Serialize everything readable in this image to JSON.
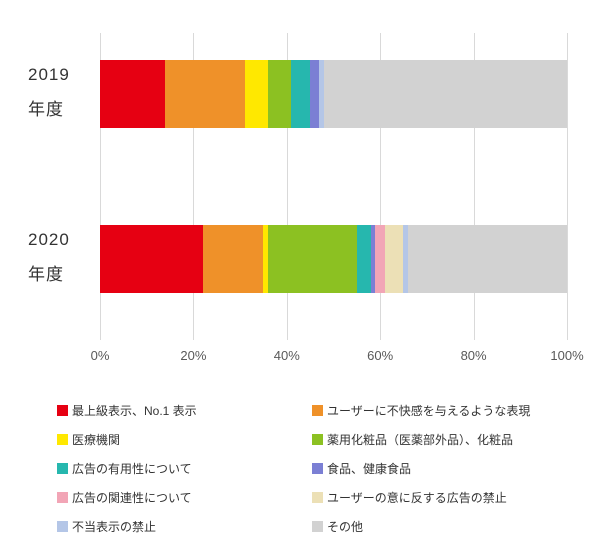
{
  "chart_data": {
    "type": "bar",
    "orientation": "horizontal",
    "stacked": true,
    "grid": true,
    "legend_position": "bottom",
    "categories": [
      "2019 年度",
      "2020 年度"
    ],
    "category_lines": [
      [
        "2019",
        "年度"
      ],
      [
        "2020",
        "年度"
      ]
    ],
    "x_ticks": [
      "0%",
      "20%",
      "40%",
      "60%",
      "80%",
      "100%"
    ],
    "xlim": [
      0,
      100
    ],
    "series": [
      {
        "name": "最上級表示、No.1 表示",
        "color": "#e60012",
        "values": [
          14,
          22
        ]
      },
      {
        "name": "ユーザーに不快感を与えるような表現",
        "color": "#ef9129",
        "values": [
          17,
          13
        ]
      },
      {
        "name": "医療機関",
        "color": "#ffe800",
        "values": [
          5,
          1
        ]
      },
      {
        "name": "薬用化粧品（医薬部外品）、化粧品",
        "color": "#8cc122",
        "values": [
          5,
          19
        ]
      },
      {
        "name": "広告の有用性について",
        "color": "#26b7ae",
        "values": [
          4,
          3
        ]
      },
      {
        "name": "食品、健康食品",
        "color": "#7b7fd4",
        "values": [
          2,
          1
        ]
      },
      {
        "name": "広告の関連性について",
        "color": "#f2a5b6",
        "values": [
          0,
          2
        ]
      },
      {
        "name": "ユーザーの意に反する広告の禁止",
        "color": "#ece0b6",
        "values": [
          0,
          4
        ]
      },
      {
        "name": "不当表示の禁止",
        "color": "#b4c6e7",
        "values": [
          1,
          1
        ]
      },
      {
        "name": "その他",
        "color": "#d2d2d2",
        "values": [
          52,
          34
        ]
      }
    ]
  }
}
